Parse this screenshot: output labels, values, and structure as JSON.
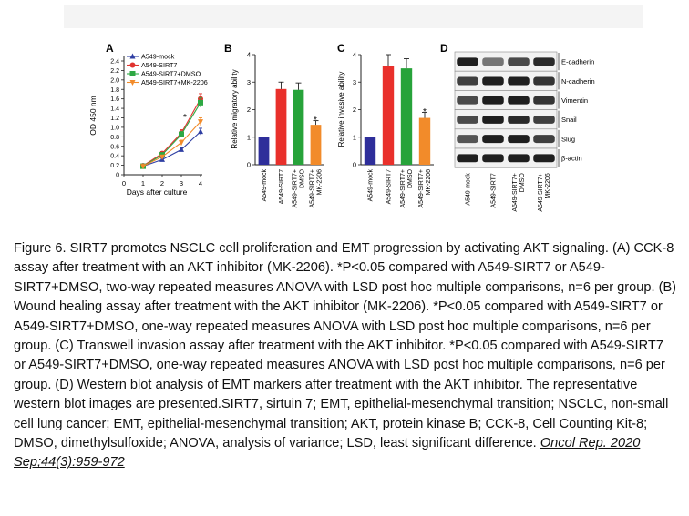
{
  "figure": {
    "panel_letters": [
      "A",
      "B",
      "C",
      "D"
    ],
    "panelA": {
      "ylabel": "OD 450 nm",
      "xlabel": "Days after culture",
      "yticks": [
        "0",
        "0.2",
        "0.4",
        "0.6",
        "0.8",
        "1.0",
        "1.2",
        "1.4",
        "1.6",
        "1.8",
        "2.0",
        "2.2",
        "2.4"
      ],
      "xticks": [
        "0",
        "1",
        "2",
        "3",
        "4"
      ],
      "star": "*"
    },
    "panelB": {
      "ylabel": "Relative migratory ability",
      "yticks": [
        "0",
        "1",
        "2",
        "3",
        "4"
      ],
      "star": "*"
    },
    "panelC": {
      "ylabel": "Relative invasive ability",
      "yticks": [
        "0",
        "1",
        "2",
        "3",
        "4"
      ],
      "star": "*"
    },
    "panelD": {
      "bands": [
        "E-cadherin",
        "N-cadherin",
        "Vimentin",
        "Snail",
        "Slug",
        "β-actin"
      ],
      "intensity": [
        [
          0.95,
          0.55,
          0.75,
          0.9
        ],
        [
          0.8,
          0.95,
          0.95,
          0.85
        ],
        [
          0.75,
          0.95,
          0.95,
          0.85
        ],
        [
          0.75,
          0.95,
          0.9,
          0.8
        ],
        [
          0.7,
          0.95,
          0.95,
          0.8
        ],
        [
          0.95,
          0.95,
          0.95,
          0.95
        ]
      ]
    }
  },
  "chart_data": [
    {
      "type": "line",
      "panel": "A",
      "title": "",
      "xlabel": "Days after culture",
      "ylabel": "OD 450 nm",
      "xlim": [
        0,
        4
      ],
      "ylim": [
        0,
        2.4
      ],
      "x": [
        1,
        2,
        3,
        4
      ],
      "legend_position": "top-left",
      "series": [
        {
          "name": "A549-mock",
          "values": [
            0.18,
            0.32,
            0.53,
            0.91
          ],
          "errors": [
            0.02,
            0.03,
            0.04,
            0.07
          ],
          "color": "#2f3fa3",
          "marker": "triangle"
        },
        {
          "name": "A549-SIRT7",
          "values": [
            0.19,
            0.45,
            0.88,
            1.6
          ],
          "errors": [
            0.02,
            0.04,
            0.07,
            0.11
          ],
          "color": "#e0332f",
          "marker": "circle"
        },
        {
          "name": "A549-SIRT7+DMSO",
          "values": [
            0.18,
            0.42,
            0.85,
            1.52
          ],
          "errors": [
            0.02,
            0.04,
            0.06,
            0.1
          ],
          "color": "#2ea843",
          "marker": "square"
        },
        {
          "name": "A549-SIRT7+MK-2206",
          "values": [
            0.18,
            0.38,
            0.68,
            1.12
          ],
          "errors": [
            0.02,
            0.03,
            0.05,
            0.08
          ],
          "color": "#f28b2a",
          "marker": "triangle-down"
        }
      ]
    },
    {
      "type": "bar",
      "panel": "B",
      "title": "",
      "xlabel": "",
      "ylabel": "Relative migratory ability",
      "ylim": [
        0,
        4
      ],
      "categories": [
        "A549-mock",
        "A549-SIRT7",
        "A549-SIRT7+ DMSO",
        "A549-SIRT7+ MK-2206"
      ],
      "values": [
        1.0,
        2.75,
        2.72,
        1.45
      ],
      "errors": [
        0,
        0.25,
        0.25,
        0.15
      ],
      "colors": [
        "#2e2e9a",
        "#e9302b",
        "#27a33a",
        "#f28b2a"
      ]
    },
    {
      "type": "bar",
      "panel": "C",
      "title": "",
      "xlabel": "",
      "ylabel": "Relative invasive ability",
      "ylim": [
        0,
        4
      ],
      "categories": [
        "A549-mock",
        "A549-SIRT7",
        "A549-SIRT7+ DMSO",
        "A549-SIRT7+ MK-2206"
      ],
      "values": [
        1.0,
        3.6,
        3.5,
        1.7
      ],
      "errors": [
        0,
        0.4,
        0.35,
        0.2
      ],
      "colors": [
        "#2e2e9a",
        "#e9302b",
        "#27a33a",
        "#f28b2a"
      ]
    }
  ],
  "caption": {
    "text": "Figure 6. SIRT7 promotes NSCLC cell proliferation and EMT progression by activating AKT signaling. (A) CCK-8 assay after treatment with an AKT inhibitor (MK-2206). *P<0.05 compared with A549-SIRT7 or A549-SIRT7+DMSO, two-way repeated measures ANOVA with LSD post hoc multiple comparisons, n=6 per group. (B) Wound healing assay after treatment with the AKT inhibitor (MK-2206). *P<0.05 compared with A549-SIRT7 or A549-SIRT7+DMSO, one-way repeated measures ANOVA with LSD post hoc multiple comparisons, n=6 per group. (C) Transwell invasion assay after treatment with the AKT inhibitor. *P<0.05 compared with A549-SIRT7 or A549-SIRT7+DMSO, one-way repeated measures ANOVA with LSD post hoc multiple comparisons, n=6 per group. (D) Western blot analysis of EMT markers after treatment with the AKT inhibitor. The representative western blot images are presented.SIRT7, sirtuin 7; EMT, epithelial-mesenchymal transition; NSCLC, non-small cell lung cancer; EMT, epithelial-mesenchymal transition; AKT, protein kinase B; CCK-8, Cell Counting Kit-8; DMSO, dimethylsulfoxide; ANOVA, analysis of variance; LSD, least significant difference.",
    "citation": "Oncol Rep. 2020 Sep;44(3):959-972"
  }
}
